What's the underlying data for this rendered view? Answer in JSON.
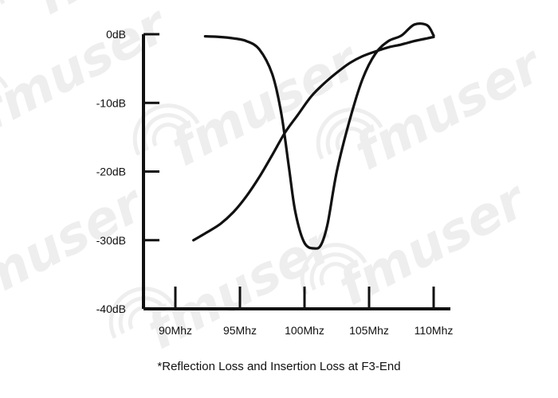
{
  "watermark": {
    "text": "fmuser"
  },
  "caption": "*Reflection Loss and Insertion Loss at F3-End",
  "chart_data": {
    "type": "line",
    "title": "",
    "xlabel": "",
    "ylabel": "",
    "x_unit": "Mhz",
    "y_unit": "dB",
    "xlim": [
      88,
      112
    ],
    "ylim": [
      -40,
      0
    ],
    "x_ticks": [
      90,
      95,
      100,
      105,
      110
    ],
    "x_tick_labels": [
      "90Mhz",
      "95Mhz",
      "100Mhz",
      "105Mhz",
      "110Mhz"
    ],
    "y_ticks": [
      0,
      -10,
      -20,
      -30,
      -40
    ],
    "y_tick_labels": [
      "0dB",
      "-10dB",
      "-20dB",
      "-30dB",
      "-40dB"
    ],
    "grid": false,
    "legend": "none",
    "line_color": "#111111",
    "series": [
      {
        "x": [
          92.3,
          93.5,
          94.5,
          95.5,
          96.5,
          97.5,
          98.2,
          98.8,
          99.3,
          100.0,
          100.8,
          101.3,
          101.8,
          102.5,
          103.5,
          104.5,
          105.5,
          106.5,
          107.5,
          108.5,
          109.5,
          110.0
        ],
        "values": [
          -0.3,
          -0.4,
          -0.6,
          -1.0,
          -2.2,
          -5.8,
          -11.5,
          -19.5,
          -26.0,
          -30.4,
          -31.2,
          -30.6,
          -27.5,
          -20.0,
          -12.5,
          -6.5,
          -2.8,
          -1.0,
          -0.2,
          1.4,
          1.3,
          -0.2
        ]
      },
      {
        "x": [
          91.4,
          92.5,
          93.5,
          94.5,
          95.5,
          96.5,
          97.5,
          98.5,
          99.5,
          100.5,
          101.5,
          102.5,
          103.5,
          104.5,
          105.5,
          106.5,
          107.5,
          108.5,
          109.5,
          110.0
        ],
        "values": [
          -30.0,
          -28.8,
          -27.6,
          -25.9,
          -23.6,
          -20.8,
          -17.6,
          -14.3,
          -11.7,
          -9.1,
          -7.2,
          -5.6,
          -4.2,
          -3.2,
          -2.5,
          -1.9,
          -1.5,
          -1.0,
          -0.6,
          -0.4
        ]
      }
    ]
  }
}
